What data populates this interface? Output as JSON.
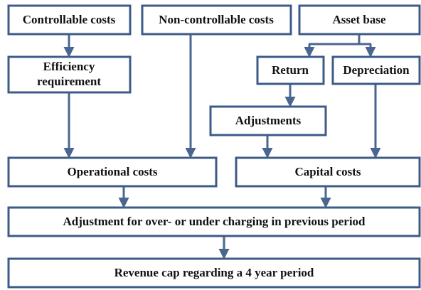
{
  "nodes": [
    {
      "label": "Controllable costs"
    },
    {
      "label": "Non-controllable costs"
    },
    {
      "label": "Asset base"
    },
    {
      "lines": [
        "Efficiency",
        "requirement"
      ]
    },
    {
      "label": "Return"
    },
    {
      "label": "Depreciation"
    },
    {
      "label": "Adjustments"
    },
    {
      "label": "Operational costs"
    },
    {
      "label": "Capital costs"
    },
    {
      "label": "Adjustment for over- or under charging in previous period"
    },
    {
      "label": "Revenue cap regarding a 4 year period"
    }
  ]
}
